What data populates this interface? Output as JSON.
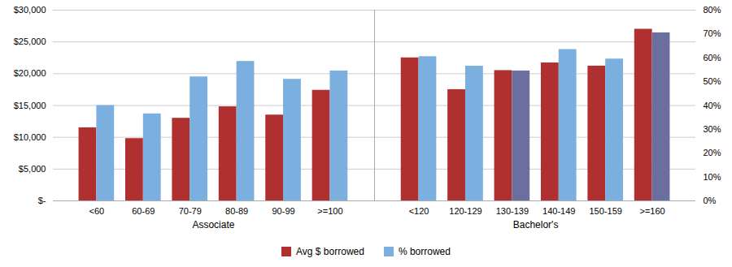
{
  "chart_data": {
    "type": "bar",
    "categories": [
      "<60",
      "60-69",
      "70-79",
      "80-89",
      "90-99",
      ">=100",
      "<120",
      "120-129",
      "130-139",
      "140-149",
      "150-159",
      ">=160"
    ],
    "groups": [
      {
        "name": "Associate",
        "categories": [
          "<60",
          "60-69",
          "70-79",
          "80-89",
          "90-99",
          ">=100"
        ]
      },
      {
        "name": "Bachelor's",
        "categories": [
          "<120",
          "120-129",
          "130-139",
          "140-149",
          "150-159",
          ">=160"
        ]
      }
    ],
    "series": [
      {
        "name": "Avg $ borrowed",
        "color": "#B03030",
        "axis": "y",
        "values": [
          11500,
          9800,
          13000,
          14800,
          13500,
          17400,
          22500,
          17500,
          20500,
          21700,
          21200,
          27000
        ]
      },
      {
        "name": "% borrowed",
        "color": "#7AAFE0",
        "axis": "y2",
        "colors": [
          "#7AAFE0",
          "#7AAFE0",
          "#7AAFE0",
          "#7AAFE0",
          "#7AAFE0",
          "#7AAFE0",
          "#7AAFE0",
          "#7AAFE0",
          "#6B6FA0",
          "#7AAFE0",
          "#7AAFE0",
          "#6B6FA0"
        ],
        "values": [
          0.4,
          0.365,
          0.52,
          0.585,
          0.51,
          0.545,
          0.605,
          0.565,
          0.545,
          0.635,
          0.595,
          0.705
        ]
      }
    ],
    "ylim": [
      0,
      30000
    ],
    "yticks": [
      {
        "value": 0,
        "label": "$-"
      },
      {
        "value": 5000,
        "label": "$5,000"
      },
      {
        "value": 10000,
        "label": "$10,000"
      },
      {
        "value": 15000,
        "label": "$15,000"
      },
      {
        "value": 20000,
        "label": "$20,000"
      },
      {
        "value": 25000,
        "label": "$25,000"
      },
      {
        "value": 30000,
        "label": "$30,000"
      }
    ],
    "y2lim": [
      0,
      0.8
    ],
    "y2ticks": [
      {
        "value": 0,
        "label": "0%"
      },
      {
        "value": 0.1,
        "label": "10%"
      },
      {
        "value": 0.2,
        "label": "20%"
      },
      {
        "value": 0.3,
        "label": "30%"
      },
      {
        "value": 0.4,
        "label": "40%"
      },
      {
        "value": 0.5,
        "label": "50%"
      },
      {
        "value": 0.6,
        "label": "60%"
      },
      {
        "value": 0.7,
        "label": "70%"
      },
      {
        "value": 0.8,
        "label": "80%"
      }
    ],
    "grid": true,
    "legend": "bottom"
  }
}
